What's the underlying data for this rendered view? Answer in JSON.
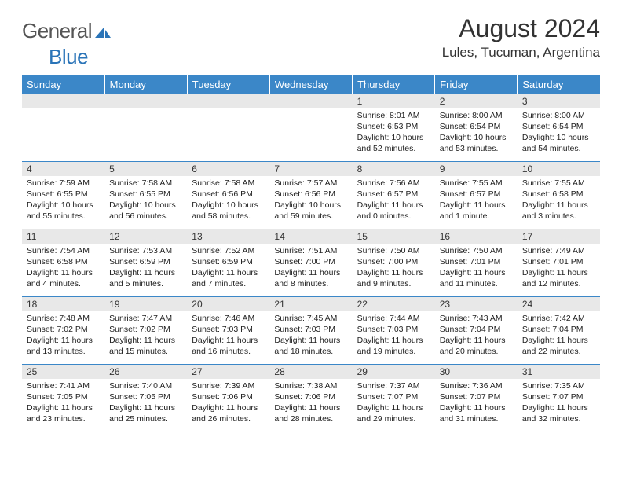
{
  "branding": {
    "logo_part1": "General",
    "logo_part2": "Blue",
    "logo_color_gray": "#6b6b6b",
    "logo_color_blue": "#2a74b8"
  },
  "title": {
    "month": "August 2024",
    "location": "Lules, Tucuman, Argentina"
  },
  "colors": {
    "header_bg": "#3b87c8",
    "header_text": "#ffffff",
    "daynum_bg": "#e8e8e8",
    "border": "#3b87c8",
    "text": "#222222"
  },
  "day_headers": [
    "Sunday",
    "Monday",
    "Tuesday",
    "Wednesday",
    "Thursday",
    "Friday",
    "Saturday"
  ],
  "weeks": [
    [
      null,
      null,
      null,
      null,
      {
        "n": "1",
        "sunrise": "8:01 AM",
        "sunset": "6:53 PM",
        "daylight": "10 hours and 52 minutes."
      },
      {
        "n": "2",
        "sunrise": "8:00 AM",
        "sunset": "6:54 PM",
        "daylight": "10 hours and 53 minutes."
      },
      {
        "n": "3",
        "sunrise": "8:00 AM",
        "sunset": "6:54 PM",
        "daylight": "10 hours and 54 minutes."
      }
    ],
    [
      {
        "n": "4",
        "sunrise": "7:59 AM",
        "sunset": "6:55 PM",
        "daylight": "10 hours and 55 minutes."
      },
      {
        "n": "5",
        "sunrise": "7:58 AM",
        "sunset": "6:55 PM",
        "daylight": "10 hours and 56 minutes."
      },
      {
        "n": "6",
        "sunrise": "7:58 AM",
        "sunset": "6:56 PM",
        "daylight": "10 hours and 58 minutes."
      },
      {
        "n": "7",
        "sunrise": "7:57 AM",
        "sunset": "6:56 PM",
        "daylight": "10 hours and 59 minutes."
      },
      {
        "n": "8",
        "sunrise": "7:56 AM",
        "sunset": "6:57 PM",
        "daylight": "11 hours and 0 minutes."
      },
      {
        "n": "9",
        "sunrise": "7:55 AM",
        "sunset": "6:57 PM",
        "daylight": "11 hours and 1 minute."
      },
      {
        "n": "10",
        "sunrise": "7:55 AM",
        "sunset": "6:58 PM",
        "daylight": "11 hours and 3 minutes."
      }
    ],
    [
      {
        "n": "11",
        "sunrise": "7:54 AM",
        "sunset": "6:58 PM",
        "daylight": "11 hours and 4 minutes."
      },
      {
        "n": "12",
        "sunrise": "7:53 AM",
        "sunset": "6:59 PM",
        "daylight": "11 hours and 5 minutes."
      },
      {
        "n": "13",
        "sunrise": "7:52 AM",
        "sunset": "6:59 PM",
        "daylight": "11 hours and 7 minutes."
      },
      {
        "n": "14",
        "sunrise": "7:51 AM",
        "sunset": "7:00 PM",
        "daylight": "11 hours and 8 minutes."
      },
      {
        "n": "15",
        "sunrise": "7:50 AM",
        "sunset": "7:00 PM",
        "daylight": "11 hours and 9 minutes."
      },
      {
        "n": "16",
        "sunrise": "7:50 AM",
        "sunset": "7:01 PM",
        "daylight": "11 hours and 11 minutes."
      },
      {
        "n": "17",
        "sunrise": "7:49 AM",
        "sunset": "7:01 PM",
        "daylight": "11 hours and 12 minutes."
      }
    ],
    [
      {
        "n": "18",
        "sunrise": "7:48 AM",
        "sunset": "7:02 PM",
        "daylight": "11 hours and 13 minutes."
      },
      {
        "n": "19",
        "sunrise": "7:47 AM",
        "sunset": "7:02 PM",
        "daylight": "11 hours and 15 minutes."
      },
      {
        "n": "20",
        "sunrise": "7:46 AM",
        "sunset": "7:03 PM",
        "daylight": "11 hours and 16 minutes."
      },
      {
        "n": "21",
        "sunrise": "7:45 AM",
        "sunset": "7:03 PM",
        "daylight": "11 hours and 18 minutes."
      },
      {
        "n": "22",
        "sunrise": "7:44 AM",
        "sunset": "7:03 PM",
        "daylight": "11 hours and 19 minutes."
      },
      {
        "n": "23",
        "sunrise": "7:43 AM",
        "sunset": "7:04 PM",
        "daylight": "11 hours and 20 minutes."
      },
      {
        "n": "24",
        "sunrise": "7:42 AM",
        "sunset": "7:04 PM",
        "daylight": "11 hours and 22 minutes."
      }
    ],
    [
      {
        "n": "25",
        "sunrise": "7:41 AM",
        "sunset": "7:05 PM",
        "daylight": "11 hours and 23 minutes."
      },
      {
        "n": "26",
        "sunrise": "7:40 AM",
        "sunset": "7:05 PM",
        "daylight": "11 hours and 25 minutes."
      },
      {
        "n": "27",
        "sunrise": "7:39 AM",
        "sunset": "7:06 PM",
        "daylight": "11 hours and 26 minutes."
      },
      {
        "n": "28",
        "sunrise": "7:38 AM",
        "sunset": "7:06 PM",
        "daylight": "11 hours and 28 minutes."
      },
      {
        "n": "29",
        "sunrise": "7:37 AM",
        "sunset": "7:07 PM",
        "daylight": "11 hours and 29 minutes."
      },
      {
        "n": "30",
        "sunrise": "7:36 AM",
        "sunset": "7:07 PM",
        "daylight": "11 hours and 31 minutes."
      },
      {
        "n": "31",
        "sunrise": "7:35 AM",
        "sunset": "7:07 PM",
        "daylight": "11 hours and 32 minutes."
      }
    ]
  ],
  "labels": {
    "sunrise_prefix": "Sunrise: ",
    "sunset_prefix": "Sunset: ",
    "daylight_prefix": "Daylight: "
  }
}
